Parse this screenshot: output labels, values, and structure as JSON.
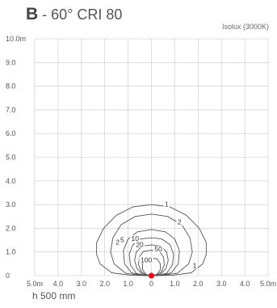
{
  "chart_data": {
    "type": "isolux",
    "title_bold": "B",
    "title_rest": " - 60° CRI 80",
    "subtitle": "Isolux (3000K)",
    "footer": "h 500 mm",
    "xlim": [
      -5,
      5
    ],
    "ylim": [
      0,
      10
    ],
    "x_ticks": [
      "5.0m",
      "4.0",
      "3.0",
      "2.0",
      "1.0",
      "0",
      "1.0",
      "2.0",
      "3.0",
      "4.0",
      "5.0m"
    ],
    "y_ticks": [
      "0",
      "1.0",
      "2.0",
      "3.0",
      "4.0",
      "5.0",
      "6.0",
      "7.0",
      "8.0",
      "9.0",
      "10.0m"
    ],
    "grid": true,
    "source_marker_color": "#e0101a",
    "line_color": "#555555",
    "contours": [
      {
        "level": "1",
        "label_points": [
          [
            0.65,
            2.95
          ],
          [
            1.85,
            0.35
          ]
        ],
        "points": [
          [
            0,
            3.0
          ],
          [
            0.8,
            2.9
          ],
          [
            1.5,
            2.55
          ],
          [
            2.05,
            2.0
          ],
          [
            2.35,
            1.4
          ],
          [
            2.35,
            0.9
          ],
          [
            2.2,
            0.5
          ],
          [
            1.7,
            0.12
          ],
          [
            0.9,
            0.02
          ],
          [
            0,
            0
          ]
        ]
      },
      {
        "level": "2",
        "label_points": [
          [
            1.2,
            2.2
          ],
          [
            -1.45,
            1.35
          ]
        ],
        "points": [
          [
            0,
            2.6
          ],
          [
            0.7,
            2.5
          ],
          [
            1.3,
            2.15
          ],
          [
            1.65,
            1.6
          ],
          [
            1.75,
            1.0
          ],
          [
            1.6,
            0.5
          ],
          [
            1.1,
            0.1
          ],
          [
            0.5,
            0.02
          ],
          [
            0,
            0
          ]
        ]
      },
      {
        "level": "5",
        "label_points": [
          [
            -1.25,
            1.45
          ]
        ],
        "points": [
          [
            0,
            1.95
          ],
          [
            0.6,
            1.85
          ],
          [
            1.0,
            1.55
          ],
          [
            1.2,
            1.05
          ],
          [
            1.15,
            0.5
          ],
          [
            0.85,
            0.12
          ],
          [
            0.4,
            0.02
          ],
          [
            0,
            0
          ]
        ]
      },
      {
        "level": "10",
        "label_points": [
          [
            -0.7,
            1.5
          ]
        ],
        "points": [
          [
            0,
            1.6
          ],
          [
            0.45,
            1.55
          ],
          [
            0.8,
            1.3
          ],
          [
            0.95,
            0.9
          ],
          [
            0.9,
            0.45
          ],
          [
            0.65,
            0.1
          ],
          [
            0.3,
            0.02
          ],
          [
            0,
            0
          ]
        ]
      },
      {
        "level": "20",
        "label_points": [
          [
            -0.5,
            1.25
          ]
        ],
        "points": [
          [
            0,
            1.3
          ],
          [
            0.4,
            1.25
          ],
          [
            0.65,
            1.0
          ],
          [
            0.72,
            0.65
          ],
          [
            0.62,
            0.3
          ],
          [
            0.4,
            0.08
          ],
          [
            0.15,
            0.01
          ],
          [
            0,
            0
          ]
        ]
      },
      {
        "level": "50",
        "label_points": [
          [
            0.3,
            1.05
          ]
        ],
        "points": [
          [
            0,
            1.08
          ],
          [
            0.35,
            1.02
          ],
          [
            0.52,
            0.78
          ],
          [
            0.55,
            0.45
          ],
          [
            0.42,
            0.15
          ],
          [
            0.2,
            0.03
          ],
          [
            0,
            0
          ]
        ]
      },
      {
        "level": "100",
        "label_points": [
          [
            -0.22,
            0.6
          ]
        ],
        "points": [
          [
            0,
            0.75
          ],
          [
            0.25,
            0.7
          ],
          [
            0.38,
            0.5
          ],
          [
            0.38,
            0.25
          ],
          [
            0.25,
            0.07
          ],
          [
            0.1,
            0.01
          ],
          [
            0,
            0
          ]
        ]
      }
    ]
  }
}
